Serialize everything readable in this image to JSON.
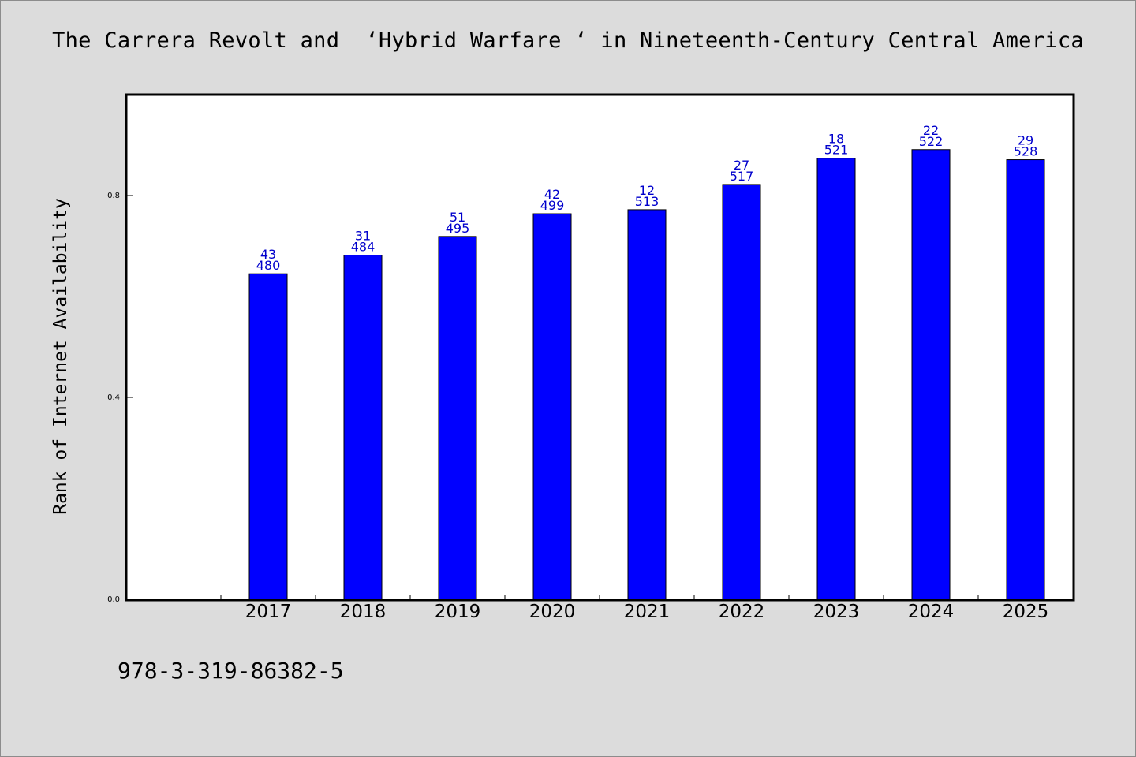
{
  "page": {
    "title": "The Carrera Revolt and  ‘Hybrid Warfare ‘ in Nineteenth-Century Central America",
    "footer": "978-3-319-86382-5"
  },
  "chart_data": {
    "type": "bar",
    "title": "The Carrera Revolt and  ‘Hybrid Warfare ‘ in Nineteenth-Century Central America",
    "xlabel": "",
    "ylabel": "Rank of Internet Availability",
    "categories": [
      "2017",
      "2018",
      "2019",
      "2020",
      "2021",
      "2022",
      "2023",
      "2024",
      "2025"
    ],
    "values": [
      0.645,
      0.682,
      0.719,
      0.764,
      0.772,
      0.822,
      0.874,
      0.891,
      0.871
    ],
    "top_labels": [
      "43",
      "31",
      "51",
      "42",
      "12",
      "27",
      "18",
      "22",
      "29"
    ],
    "bottom_labels": [
      "480",
      "484",
      "495",
      "499",
      "513",
      "517",
      "521",
      "522",
      "528"
    ],
    "ylim": [
      0,
      1.0
    ],
    "yticks": [
      0.0,
      0.4,
      0.8
    ],
    "ytick_labels": [
      "0.0",
      "0.4",
      "0.8"
    ],
    "grid": false,
    "legend": "none",
    "colors": {
      "bar": "#0000ff",
      "bar_edge": "#000000",
      "label": "#0000cc",
      "background": "#dcdcdc",
      "plot_bg": "#ffffff"
    }
  }
}
